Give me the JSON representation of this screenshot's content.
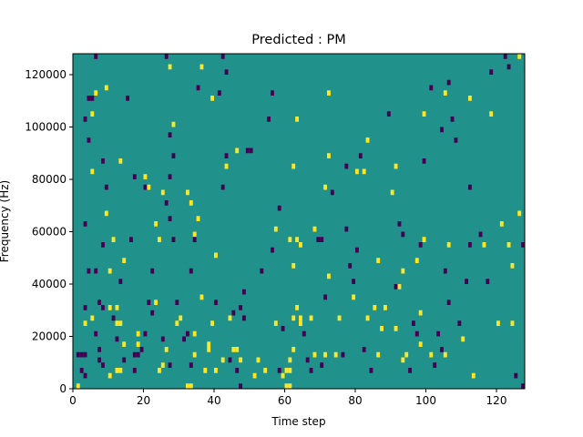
{
  "chart_data": {
    "type": "heatmap",
    "title": "Predicted : PM",
    "xlabel": "Time step",
    "ylabel": "Frequency (Hz)",
    "xlim": [
      0,
      128
    ],
    "ylim": [
      0,
      128000
    ],
    "xticks": [
      0,
      20,
      40,
      60,
      80,
      100,
      120
    ],
    "yticks": [
      0,
      20000,
      40000,
      60000,
      80000,
      100000,
      120000
    ],
    "grid": false,
    "legend": "none",
    "value_levels": [
      -1,
      0,
      1
    ],
    "colors": {
      "-1": "#440154",
      "0": "#21918c",
      "1": "#fde725"
    },
    "background_value": 0,
    "cell_width": 1,
    "cell_height": 2000,
    "cells": [
      {
        "x": 1,
        "y": 0,
        "v": 1
      },
      {
        "x": 3,
        "y": 4000,
        "v": -1
      },
      {
        "x": 2,
        "y": 6000,
        "v": -1
      },
      {
        "x": 1,
        "y": 12000,
        "v": -1
      },
      {
        "x": 2,
        "y": 12000,
        "v": -1
      },
      {
        "x": 3,
        "y": 12000,
        "v": -1
      },
      {
        "x": 3,
        "y": 24000,
        "v": 1
      },
      {
        "x": 3,
        "y": 30000,
        "v": -1
      },
      {
        "x": 4,
        "y": 44000,
        "v": -1
      },
      {
        "x": 3,
        "y": 62000,
        "v": -1
      },
      {
        "x": 4,
        "y": 110000,
        "v": -1
      },
      {
        "x": 5,
        "y": 110000,
        "v": -1
      },
      {
        "x": 3,
        "y": 102000,
        "v": -1
      },
      {
        "x": 4,
        "y": 94000,
        "v": -1
      },
      {
        "x": 5,
        "y": 82000,
        "v": 1
      },
      {
        "x": 6,
        "y": 126000,
        "v": -1
      },
      {
        "x": 6,
        "y": 112000,
        "v": 1
      },
      {
        "x": 5,
        "y": 104000,
        "v": 1
      },
      {
        "x": 6,
        "y": 44000,
        "v": -1
      },
      {
        "x": 5,
        "y": 26000,
        "v": 1
      },
      {
        "x": 6,
        "y": 20000,
        "v": -1
      },
      {
        "x": 7,
        "y": 10000,
        "v": -1
      },
      {
        "x": 7,
        "y": 14000,
        "v": -1
      },
      {
        "x": 8,
        "y": 8000,
        "v": -1
      },
      {
        "x": 7,
        "y": 32000,
        "v": -1
      },
      {
        "x": 8,
        "y": 30000,
        "v": -1
      },
      {
        "x": 8,
        "y": 54000,
        "v": -1
      },
      {
        "x": 9,
        "y": 66000,
        "v": 1
      },
      {
        "x": 9,
        "y": 76000,
        "v": -1
      },
      {
        "x": 8,
        "y": 86000,
        "v": -1
      },
      {
        "x": 9,
        "y": 114000,
        "v": 1
      },
      {
        "x": 10,
        "y": 4000,
        "v": 1
      },
      {
        "x": 10,
        "y": 30000,
        "v": 1
      },
      {
        "x": 10,
        "y": 44000,
        "v": 1
      },
      {
        "x": 11,
        "y": 56000,
        "v": 1
      },
      {
        "x": 11,
        "y": 26000,
        "v": -1
      },
      {
        "x": 12,
        "y": 24000,
        "v": 1
      },
      {
        "x": 13,
        "y": 24000,
        "v": 1
      },
      {
        "x": 12,
        "y": 6000,
        "v": 1
      },
      {
        "x": 13,
        "y": 6000,
        "v": 1
      },
      {
        "x": 12,
        "y": 18000,
        "v": -1
      },
      {
        "x": 12,
        "y": 30000,
        "v": 1
      },
      {
        "x": 13,
        "y": 40000,
        "v": -1
      },
      {
        "x": 14,
        "y": 16000,
        "v": 1
      },
      {
        "x": 14,
        "y": 48000,
        "v": 1
      },
      {
        "x": 14,
        "y": 10000,
        "v": -1
      },
      {
        "x": 13,
        "y": 86000,
        "v": 1
      },
      {
        "x": 15,
        "y": 110000,
        "v": -1
      },
      {
        "x": 16,
        "y": 56000,
        "v": -1
      },
      {
        "x": 17,
        "y": 80000,
        "v": -1
      },
      {
        "x": 17,
        "y": 12000,
        "v": -1
      },
      {
        "x": 18,
        "y": 12000,
        "v": -1
      },
      {
        "x": 17,
        "y": 6000,
        "v": -1
      },
      {
        "x": 18,
        "y": 16000,
        "v": 1
      },
      {
        "x": 18,
        "y": 20000,
        "v": 1
      },
      {
        "x": 19,
        "y": 14000,
        "v": -1
      },
      {
        "x": 20,
        "y": 20000,
        "v": -1
      },
      {
        "x": 21,
        "y": 32000,
        "v": -1
      },
      {
        "x": 22,
        "y": 28000,
        "v": -1
      },
      {
        "x": 23,
        "y": 32000,
        "v": 1
      },
      {
        "x": 22,
        "y": 44000,
        "v": -1
      },
      {
        "x": 20,
        "y": 76000,
        "v": -1
      },
      {
        "x": 20,
        "y": 80000,
        "v": 1
      },
      {
        "x": 21,
        "y": 76000,
        "v": 1
      },
      {
        "x": 23,
        "y": 62000,
        "v": 1
      },
      {
        "x": 24,
        "y": 56000,
        "v": 1
      },
      {
        "x": 24,
        "y": 6000,
        "v": 1
      },
      {
        "x": 25,
        "y": 18000,
        "v": -1
      },
      {
        "x": 25,
        "y": 8000,
        "v": 1
      },
      {
        "x": 26,
        "y": 14000,
        "v": 1
      },
      {
        "x": 27,
        "y": 8000,
        "v": -1
      },
      {
        "x": 27,
        "y": 80000,
        "v": -1
      },
      {
        "x": 25,
        "y": 74000,
        "v": 1
      },
      {
        "x": 26,
        "y": 70000,
        "v": -1
      },
      {
        "x": 27,
        "y": 64000,
        "v": -1
      },
      {
        "x": 28,
        "y": 56000,
        "v": -1
      },
      {
        "x": 28,
        "y": 88000,
        "v": -1
      },
      {
        "x": 27,
        "y": 96000,
        "v": -1
      },
      {
        "x": 26,
        "y": 126000,
        "v": -1
      },
      {
        "x": 27,
        "y": 122000,
        "v": 1
      },
      {
        "x": 28,
        "y": 100000,
        "v": 1
      },
      {
        "x": 29,
        "y": 24000,
        "v": 1
      },
      {
        "x": 29,
        "y": 32000,
        "v": -1
      },
      {
        "x": 30,
        "y": 26000,
        "v": 1
      },
      {
        "x": 31,
        "y": 18000,
        "v": -1
      },
      {
        "x": 32,
        "y": 20000,
        "v": -1
      },
      {
        "x": 32,
        "y": 0,
        "v": 1
      },
      {
        "x": 33,
        "y": 0,
        "v": 1
      },
      {
        "x": 33,
        "y": 8000,
        "v": -1
      },
      {
        "x": 34,
        "y": 12000,
        "v": 1
      },
      {
        "x": 34,
        "y": 20000,
        "v": 1
      },
      {
        "x": 33,
        "y": 44000,
        "v": -1
      },
      {
        "x": 34,
        "y": 58000,
        "v": 1
      },
      {
        "x": 32,
        "y": 74000,
        "v": 1
      },
      {
        "x": 33,
        "y": 70000,
        "v": 1
      },
      {
        "x": 34,
        "y": 56000,
        "v": -1
      },
      {
        "x": 35,
        "y": 64000,
        "v": 1
      },
      {
        "x": 36,
        "y": 34000,
        "v": 1
      },
      {
        "x": 36,
        "y": 122000,
        "v": 1
      },
      {
        "x": 35,
        "y": 114000,
        "v": -1
      },
      {
        "x": 37,
        "y": 6000,
        "v": 1
      },
      {
        "x": 38,
        "y": 14000,
        "v": 1
      },
      {
        "x": 38,
        "y": 16000,
        "v": 1
      },
      {
        "x": 39,
        "y": 24000,
        "v": 1
      },
      {
        "x": 40,
        "y": 50000,
        "v": 1
      },
      {
        "x": 40,
        "y": 32000,
        "v": -1
      },
      {
        "x": 39,
        "y": 110000,
        "v": 1
      },
      {
        "x": 41,
        "y": 112000,
        "v": -1
      },
      {
        "x": 40,
        "y": 6000,
        "v": 1
      },
      {
        "x": 42,
        "y": 10000,
        "v": 1
      },
      {
        "x": 42,
        "y": 76000,
        "v": -1
      },
      {
        "x": 42,
        "y": 126000,
        "v": -1
      },
      {
        "x": 43,
        "y": 120000,
        "v": -1
      },
      {
        "x": 43,
        "y": 88000,
        "v": -1
      },
      {
        "x": 43,
        "y": 84000,
        "v": 1
      },
      {
        "x": 44,
        "y": 10000,
        "v": -1
      },
      {
        "x": 44,
        "y": 26000,
        "v": 1
      },
      {
        "x": 45,
        "y": 28000,
        "v": -1
      },
      {
        "x": 45,
        "y": 14000,
        "v": 1
      },
      {
        "x": 46,
        "y": 14000,
        "v": 1
      },
      {
        "x": 46,
        "y": 6000,
        "v": -1
      },
      {
        "x": 47,
        "y": 0,
        "v": -1
      },
      {
        "x": 47,
        "y": 10000,
        "v": 1
      },
      {
        "x": 47,
        "y": 30000,
        "v": -1
      },
      {
        "x": 48,
        "y": 26000,
        "v": -1
      },
      {
        "x": 48,
        "y": 36000,
        "v": -1
      },
      {
        "x": 46,
        "y": 90000,
        "v": 1
      },
      {
        "x": 49,
        "y": 90000,
        "v": -1
      },
      {
        "x": 50,
        "y": 90000,
        "v": -1
      },
      {
        "x": 51,
        "y": 4000,
        "v": 1
      },
      {
        "x": 52,
        "y": 10000,
        "v": 1
      },
      {
        "x": 53,
        "y": 44000,
        "v": -1
      },
      {
        "x": 54,
        "y": 6000,
        "v": 1
      },
      {
        "x": 55,
        "y": 102000,
        "v": -1
      },
      {
        "x": 56,
        "y": 52000,
        "v": -1
      },
      {
        "x": 56,
        "y": 112000,
        "v": -1
      },
      {
        "x": 57,
        "y": 60000,
        "v": 1
      },
      {
        "x": 57,
        "y": 24000,
        "v": 1
      },
      {
        "x": 58,
        "y": 68000,
        "v": -1
      },
      {
        "x": 58,
        "y": 6000,
        "v": -1
      },
      {
        "x": 59,
        "y": 4000,
        "v": 1
      },
      {
        "x": 59,
        "y": 22000,
        "v": -1
      },
      {
        "x": 60,
        "y": 0,
        "v": 1
      },
      {
        "x": 60,
        "y": 6000,
        "v": 1
      },
      {
        "x": 61,
        "y": 0,
        "v": 1
      },
      {
        "x": 61,
        "y": 6000,
        "v": 1
      },
      {
        "x": 61,
        "y": 10000,
        "v": 1
      },
      {
        "x": 62,
        "y": 14000,
        "v": 1
      },
      {
        "x": 62,
        "y": 26000,
        "v": 1
      },
      {
        "x": 61,
        "y": 56000,
        "v": 1
      },
      {
        "x": 62,
        "y": 46000,
        "v": 1
      },
      {
        "x": 62,
        "y": 84000,
        "v": 1
      },
      {
        "x": 63,
        "y": 102000,
        "v": 1
      },
      {
        "x": 63,
        "y": 30000,
        "v": 1
      },
      {
        "x": 64,
        "y": 24000,
        "v": 1
      },
      {
        "x": 64,
        "y": 26000,
        "v": 1
      },
      {
        "x": 63,
        "y": 56000,
        "v": 1
      },
      {
        "x": 64,
        "y": 54000,
        "v": 1
      },
      {
        "x": 65,
        "y": 20000,
        "v": -1
      },
      {
        "x": 66,
        "y": 10000,
        "v": -1
      },
      {
        "x": 67,
        "y": 6000,
        "v": -1
      },
      {
        "x": 68,
        "y": 12000,
        "v": 1
      },
      {
        "x": 67,
        "y": 26000,
        "v": 1
      },
      {
        "x": 68,
        "y": 60000,
        "v": 1
      },
      {
        "x": 69,
        "y": 56000,
        "v": -1
      },
      {
        "x": 70,
        "y": 56000,
        "v": -1
      },
      {
        "x": 70,
        "y": 8000,
        "v": -1
      },
      {
        "x": 71,
        "y": 12000,
        "v": 1
      },
      {
        "x": 71,
        "y": 34000,
        "v": -1
      },
      {
        "x": 72,
        "y": 42000,
        "v": 1
      },
      {
        "x": 71,
        "y": 76000,
        "v": 1
      },
      {
        "x": 72,
        "y": 88000,
        "v": 1
      },
      {
        "x": 72,
        "y": 112000,
        "v": 1
      },
      {
        "x": 73,
        "y": 74000,
        "v": -1
      },
      {
        "x": 74,
        "y": 12000,
        "v": 1
      },
      {
        "x": 75,
        "y": 26000,
        "v": 1
      },
      {
        "x": 76,
        "y": 12000,
        "v": -1
      },
      {
        "x": 77,
        "y": 84000,
        "v": -1
      },
      {
        "x": 77,
        "y": 60000,
        "v": -1
      },
      {
        "x": 78,
        "y": 46000,
        "v": -1
      },
      {
        "x": 79,
        "y": 40000,
        "v": -1
      },
      {
        "x": 80,
        "y": 52000,
        "v": -1
      },
      {
        "x": 79,
        "y": 34000,
        "v": 1
      },
      {
        "x": 80,
        "y": 82000,
        "v": 1
      },
      {
        "x": 81,
        "y": 88000,
        "v": -1
      },
      {
        "x": 82,
        "y": 82000,
        "v": 1
      },
      {
        "x": 83,
        "y": 94000,
        "v": 1
      },
      {
        "x": 83,
        "y": 26000,
        "v": 1
      },
      {
        "x": 82,
        "y": 14000,
        "v": -1
      },
      {
        "x": 84,
        "y": 6000,
        "v": -1
      },
      {
        "x": 85,
        "y": 30000,
        "v": 1
      },
      {
        "x": 86,
        "y": 48000,
        "v": 1
      },
      {
        "x": 86,
        "y": 12000,
        "v": 1
      },
      {
        "x": 87,
        "y": 22000,
        "v": 1
      },
      {
        "x": 88,
        "y": 30000,
        "v": 1
      },
      {
        "x": 89,
        "y": 104000,
        "v": -1
      },
      {
        "x": 90,
        "y": 74000,
        "v": 1
      },
      {
        "x": 91,
        "y": 84000,
        "v": 1
      },
      {
        "x": 92,
        "y": 38000,
        "v": 1
      },
      {
        "x": 93,
        "y": 44000,
        "v": 1
      },
      {
        "x": 93,
        "y": 58000,
        "v": -1
      },
      {
        "x": 92,
        "y": 62000,
        "v": -1
      },
      {
        "x": 91,
        "y": 38000,
        "v": -1
      },
      {
        "x": 91,
        "y": 22000,
        "v": 1
      },
      {
        "x": 93,
        "y": 10000,
        "v": 1
      },
      {
        "x": 94,
        "y": 12000,
        "v": 1
      },
      {
        "x": 95,
        "y": 6000,
        "v": -1
      },
      {
        "x": 96,
        "y": 24000,
        "v": -1
      },
      {
        "x": 97,
        "y": 20000,
        "v": -1
      },
      {
        "x": 98,
        "y": 28000,
        "v": 1
      },
      {
        "x": 98,
        "y": 16000,
        "v": 1
      },
      {
        "x": 97,
        "y": 48000,
        "v": 1
      },
      {
        "x": 98,
        "y": 54000,
        "v": -1
      },
      {
        "x": 99,
        "y": 56000,
        "v": 1
      },
      {
        "x": 99,
        "y": 86000,
        "v": -1
      },
      {
        "x": 99,
        "y": 104000,
        "v": 1
      },
      {
        "x": 101,
        "y": 114000,
        "v": -1
      },
      {
        "x": 101,
        "y": 12000,
        "v": 1
      },
      {
        "x": 102,
        "y": 8000,
        "v": -1
      },
      {
        "x": 103,
        "y": 20000,
        "v": -1
      },
      {
        "x": 104,
        "y": 14000,
        "v": -1
      },
      {
        "x": 105,
        "y": 12000,
        "v": 1
      },
      {
        "x": 105,
        "y": 44000,
        "v": -1
      },
      {
        "x": 106,
        "y": 32000,
        "v": -1
      },
      {
        "x": 106,
        "y": 54000,
        "v": 1
      },
      {
        "x": 104,
        "y": 98000,
        "v": -1
      },
      {
        "x": 105,
        "y": 112000,
        "v": 1
      },
      {
        "x": 106,
        "y": 116000,
        "v": -1
      },
      {
        "x": 107,
        "y": 102000,
        "v": -1
      },
      {
        "x": 108,
        "y": 94000,
        "v": -1
      },
      {
        "x": 109,
        "y": 24000,
        "v": -1
      },
      {
        "x": 110,
        "y": 18000,
        "v": 1
      },
      {
        "x": 111,
        "y": 40000,
        "v": -1
      },
      {
        "x": 112,
        "y": 54000,
        "v": -1
      },
      {
        "x": 112,
        "y": 76000,
        "v": -1
      },
      {
        "x": 112,
        "y": 110000,
        "v": 1
      },
      {
        "x": 113,
        "y": 4000,
        "v": 1
      },
      {
        "x": 115,
        "y": 58000,
        "v": -1
      },
      {
        "x": 116,
        "y": 54000,
        "v": 1
      },
      {
        "x": 117,
        "y": 40000,
        "v": -1
      },
      {
        "x": 118,
        "y": 120000,
        "v": -1
      },
      {
        "x": 118,
        "y": 104000,
        "v": 1
      },
      {
        "x": 120,
        "y": 24000,
        "v": 1
      },
      {
        "x": 121,
        "y": 62000,
        "v": 1
      },
      {
        "x": 122,
        "y": 126000,
        "v": -1
      },
      {
        "x": 123,
        "y": 122000,
        "v": -1
      },
      {
        "x": 124,
        "y": 46000,
        "v": 1
      },
      {
        "x": 124,
        "y": 24000,
        "v": 1
      },
      {
        "x": 125,
        "y": 4000,
        "v": -1
      },
      {
        "x": 126,
        "y": 66000,
        "v": 1
      },
      {
        "x": 126,
        "y": 126000,
        "v": 1
      },
      {
        "x": 127,
        "y": 54000,
        "v": -1
      },
      {
        "x": 127,
        "y": 0,
        "v": -1
      },
      {
        "x": 123,
        "y": 54000,
        "v": 1
      }
    ]
  }
}
